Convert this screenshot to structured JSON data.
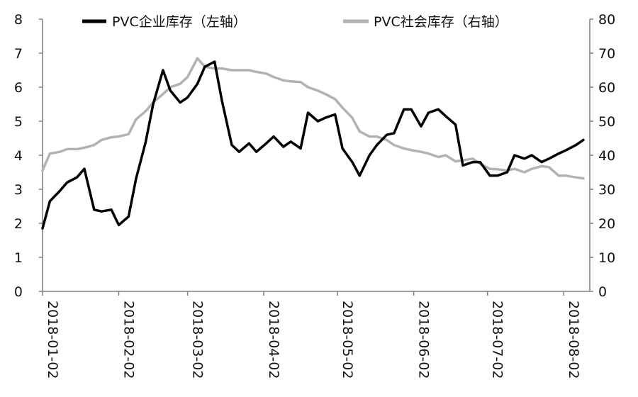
{
  "chart_data": {
    "type": "line",
    "x_ticks": [
      "2018-01-02",
      "2018-02-02",
      "2018-03-02",
      "2018-04-02",
      "2018-05-02",
      "2018-06-02",
      "2018-07-02",
      "2018-08-02"
    ],
    "y_left": {
      "min": 0,
      "max": 8,
      "ticks": [
        0,
        1,
        2,
        3,
        4,
        5,
        6,
        7,
        8
      ]
    },
    "y_right": {
      "min": 0,
      "max": 80,
      "ticks": [
        0,
        10,
        20,
        30,
        40,
        50,
        60,
        70,
        80
      ]
    },
    "legend_position": "top",
    "grid": false,
    "series": [
      {
        "name": "PVC企业库存（左轴）",
        "axis": "left",
        "color": "#000000",
        "x": [
          "2018-01-02",
          "2018-01-05",
          "2018-01-09",
          "2018-01-12",
          "2018-01-16",
          "2018-01-19",
          "2018-01-23",
          "2018-01-26",
          "2018-01-30",
          "2018-02-02",
          "2018-02-06",
          "2018-02-09",
          "2018-02-13",
          "2018-02-16",
          "2018-02-20",
          "2018-02-23",
          "2018-02-27",
          "2018-03-02",
          "2018-03-06",
          "2018-03-09",
          "2018-03-13",
          "2018-03-16",
          "2018-03-20",
          "2018-03-23",
          "2018-03-27",
          "2018-03-30",
          "2018-04-03",
          "2018-04-06",
          "2018-04-10",
          "2018-04-13",
          "2018-04-17",
          "2018-04-20",
          "2018-04-24",
          "2018-04-27",
          "2018-05-01",
          "2018-05-04",
          "2018-05-08",
          "2018-05-11",
          "2018-05-15",
          "2018-05-18",
          "2018-05-22",
          "2018-05-25",
          "2018-05-29",
          "2018-06-01",
          "2018-06-05",
          "2018-06-08",
          "2018-06-12",
          "2018-06-15",
          "2018-06-19",
          "2018-06-22",
          "2018-06-26",
          "2018-06-29",
          "2018-07-03",
          "2018-07-06",
          "2018-07-10",
          "2018-07-13",
          "2018-07-17",
          "2018-07-20",
          "2018-07-24",
          "2018-07-27",
          "2018-07-31",
          "2018-08-03",
          "2018-08-07",
          "2018-08-10"
        ],
        "values": [
          1.85,
          2.65,
          2.95,
          3.2,
          3.35,
          3.6,
          2.4,
          2.35,
          2.4,
          1.95,
          2.2,
          3.3,
          4.4,
          5.5,
          6.5,
          5.9,
          5.55,
          5.7,
          6.1,
          6.6,
          6.75,
          5.6,
          4.3,
          4.1,
          4.35,
          4.1,
          4.35,
          4.55,
          4.25,
          4.4,
          4.2,
          5.25,
          5.0,
          5.1,
          5.2,
          4.2,
          3.8,
          3.4,
          4.0,
          4.3,
          4.6,
          4.65,
          5.35,
          5.35,
          4.85,
          5.25,
          5.35,
          5.15,
          4.9,
          3.7,
          3.8,
          3.8,
          3.4,
          3.4,
          3.5,
          4.0,
          3.9,
          4.0,
          3.8,
          3.9,
          4.05,
          4.15,
          4.3,
          4.45
        ]
      },
      {
        "name": "PVC社会库存（右轴）",
        "axis": "right",
        "color": "#b2b2b2",
        "x": [
          "2018-01-02",
          "2018-01-05",
          "2018-01-09",
          "2018-01-12",
          "2018-01-16",
          "2018-01-19",
          "2018-01-23",
          "2018-01-26",
          "2018-01-30",
          "2018-02-02",
          "2018-02-06",
          "2018-02-09",
          "2018-02-13",
          "2018-02-16",
          "2018-02-20",
          "2018-02-23",
          "2018-02-27",
          "2018-03-02",
          "2018-03-06",
          "2018-03-09",
          "2018-03-13",
          "2018-03-16",
          "2018-03-20",
          "2018-03-23",
          "2018-03-27",
          "2018-03-30",
          "2018-04-03",
          "2018-04-06",
          "2018-04-10",
          "2018-04-13",
          "2018-04-17",
          "2018-04-20",
          "2018-04-24",
          "2018-04-27",
          "2018-05-01",
          "2018-05-04",
          "2018-05-08",
          "2018-05-11",
          "2018-05-15",
          "2018-05-18",
          "2018-05-22",
          "2018-05-25",
          "2018-05-29",
          "2018-06-01",
          "2018-06-05",
          "2018-06-08",
          "2018-06-12",
          "2018-06-15",
          "2018-06-19",
          "2018-06-22",
          "2018-06-26",
          "2018-06-29",
          "2018-07-03",
          "2018-07-06",
          "2018-07-10",
          "2018-07-13",
          "2018-07-17",
          "2018-07-20",
          "2018-07-24",
          "2018-07-27",
          "2018-07-31",
          "2018-08-03",
          "2018-08-07",
          "2018-08-10"
        ],
        "values": [
          35.5,
          40.5,
          41,
          41.8,
          41.8,
          42.2,
          43,
          44.5,
          45.3,
          45.5,
          46.2,
          50.5,
          53,
          55.5,
          58,
          60,
          61,
          63,
          68.5,
          66,
          65.5,
          65.5,
          65,
          65,
          65,
          64.5,
          64,
          63,
          62,
          61.7,
          61.5,
          60,
          59,
          58,
          56.5,
          54,
          51,
          47,
          45.5,
          45.5,
          44.5,
          43,
          42,
          41.5,
          41,
          40.5,
          39.5,
          40,
          38.2,
          38.5,
          39,
          37.5,
          36,
          35.9,
          35.5,
          36,
          35,
          36,
          36.8,
          36.5,
          34,
          34,
          33.5,
          33.2
        ]
      }
    ]
  }
}
